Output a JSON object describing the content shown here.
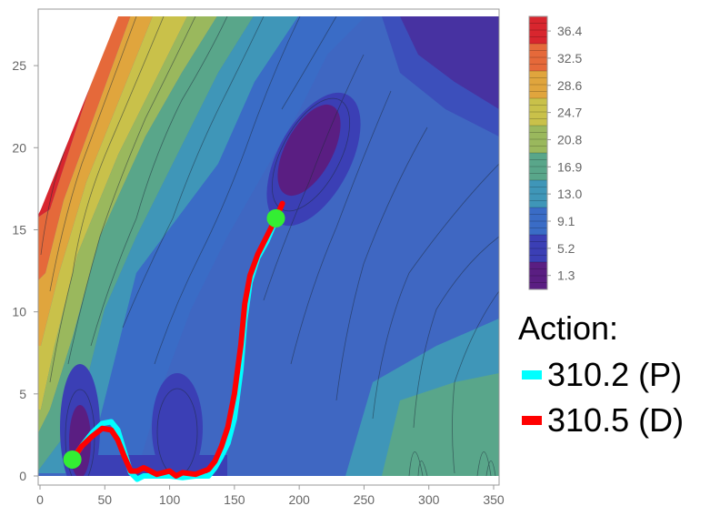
{
  "chart_data": {
    "type": "contour",
    "title": "",
    "xlabel": "",
    "ylabel": "",
    "xlim": [
      0,
      350
    ],
    "ylim": [
      0,
      28
    ],
    "x_ticks": [
      0,
      50,
      100,
      150,
      200,
      250,
      300,
      350
    ],
    "y_ticks": [
      0,
      5,
      10,
      15,
      20,
      25
    ],
    "colorbar": {
      "ticks": [
        1.3,
        5.2,
        9.1,
        13.0,
        16.9,
        20.8,
        24.7,
        28.6,
        32.5,
        36.4
      ],
      "tick_labels": [
        "1.3",
        "5.2",
        "9.1",
        "13.0",
        "16.9",
        "20.8",
        "24.7",
        "28.6",
        "32.5",
        "36.4"
      ],
      "range": [
        -0.7,
        38.5
      ],
      "colors": [
        "#5a1e82",
        "#3b3fb5",
        "#3a6cc6",
        "#3f96b8",
        "#59a68a",
        "#9ab85d",
        "#c9c14a",
        "#e0a53d",
        "#e5693a",
        "#d8262e"
      ]
    },
    "legend": {
      "title": "Action:",
      "placement": "right",
      "entries": [
        {
          "label": "310.2 (P)",
          "color": "#00ffff"
        },
        {
          "label": "310.5 (D)",
          "color": "#ff0000"
        }
      ]
    },
    "series": [
      {
        "name": "310.2 (P)",
        "color": "#00ffff",
        "x": [
          25,
          32,
          40,
          48,
          55,
          60,
          65,
          70,
          75,
          80,
          90,
          100,
          110,
          120,
          130,
          135,
          140,
          145,
          150,
          155,
          158,
          162,
          168,
          175,
          182
        ],
        "y": [
          1.0,
          1.8,
          2.6,
          3.2,
          3.3,
          2.8,
          1.5,
          0.2,
          -0.2,
          0.0,
          0.0,
          0.0,
          -0.1,
          0.0,
          0.0,
          0.5,
          1.2,
          2.0,
          3.5,
          6.5,
          9.5,
          11.8,
          13.3,
          14.3,
          15.6
        ]
      },
      {
        "name": "310.5 (D)",
        "color": "#ff0000",
        "x": [
          25,
          32,
          40,
          48,
          55,
          60,
          65,
          70,
          75,
          80,
          90,
          100,
          105,
          110,
          120,
          130,
          135,
          140,
          145,
          150,
          155,
          158,
          162,
          168,
          175,
          182,
          187
        ],
        "y": [
          1.0,
          1.8,
          2.4,
          2.9,
          2.8,
          2.2,
          1.2,
          0.3,
          0.3,
          0.5,
          0.1,
          0.3,
          0.0,
          0.2,
          0.1,
          0.4,
          0.9,
          1.8,
          3.0,
          5.0,
          8.0,
          10.5,
          12.2,
          13.5,
          14.6,
          15.7,
          16.6
        ]
      }
    ],
    "markers": [
      {
        "x": 25,
        "y": 1.0,
        "color": "#33ee33"
      },
      {
        "x": 182,
        "y": 15.7,
        "color": "#33ee33"
      }
    ]
  }
}
